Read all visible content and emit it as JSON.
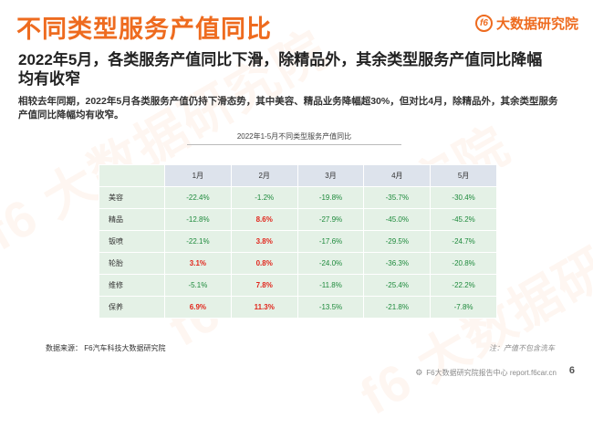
{
  "header": {
    "title": "不同类型服务产值同比",
    "logo_text": "大数据研究院",
    "logo_mark": "f6",
    "brand_color": "#ee6b1f"
  },
  "subtitle": "2022年5月，各类服务产值同比下滑，除精品外，其余类型服务产值同比降幅均有收窄",
  "description": "相较去年同期，2022年5月各类服务产值仍持下滑态势，其中美容、精品业务降幅超30%，但对比4月，除精品外，其余类型服务产值同比降幅均有收窄。",
  "table": {
    "title": "2022年1-5月不同类型服务产值同比",
    "columns": [
      "1月",
      "2月",
      "3月",
      "4月",
      "5月"
    ],
    "rows": [
      {
        "label": "美容",
        "values": [
          "-22.4%",
          "-1.2%",
          "-19.8%",
          "-35.7%",
          "-30.4%"
        ]
      },
      {
        "label": "精品",
        "values": [
          "-12.8%",
          "8.6%",
          "-27.9%",
          "-45.0%",
          "-45.2%"
        ]
      },
      {
        "label": "钣喷",
        "values": [
          "-22.1%",
          "3.8%",
          "-17.6%",
          "-29.5%",
          "-24.7%"
        ]
      },
      {
        "label": "轮胎",
        "values": [
          "3.1%",
          "0.8%",
          "-24.0%",
          "-36.3%",
          "-20.8%"
        ]
      },
      {
        "label": "维修",
        "values": [
          "-5.1%",
          "7.8%",
          "-11.8%",
          "-25.4%",
          "-22.2%"
        ]
      },
      {
        "label": "保养",
        "values": [
          "6.9%",
          "11.3%",
          "-13.5%",
          "-21.8%",
          "-7.8%"
        ]
      }
    ],
    "negative_color": "#1e8a3c",
    "positive_color": "#e1261c"
  },
  "source": "数据来源：  F6汽车科技大数据研究院",
  "note": "注：产值不包含洗车",
  "footer": {
    "text": "F6大数据研究院报告中心 report.f6car.cn",
    "icon": "gear-icon",
    "page_number": "6"
  },
  "watermark_text": "f6 大数据研究院"
}
